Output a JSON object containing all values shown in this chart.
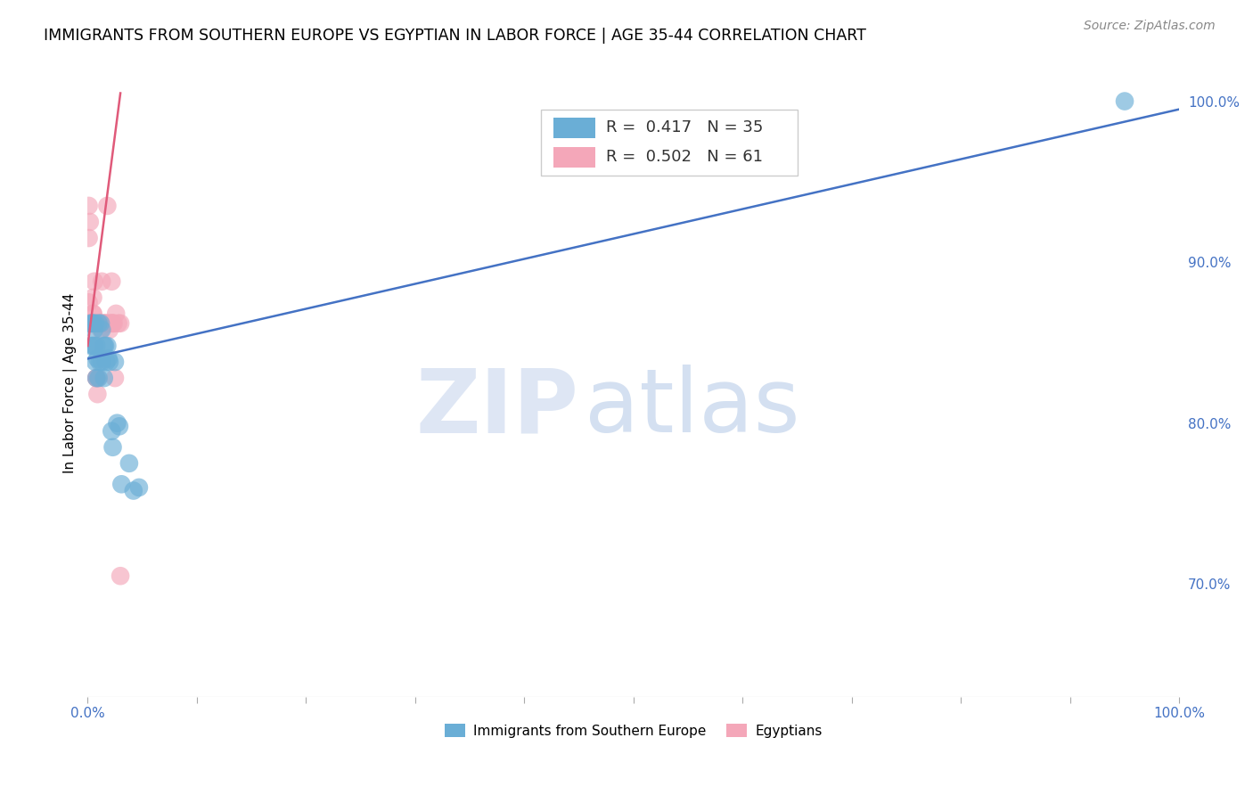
{
  "title": "IMMIGRANTS FROM SOUTHERN EUROPE VS EGYPTIAN IN LABOR FORCE | AGE 35-44 CORRELATION CHART",
  "source": "Source: ZipAtlas.com",
  "ylabel": "In Labor Force | Age 35-44",
  "xlim": [
    0.0,
    1.0
  ],
  "ylim": [
    0.63,
    1.02
  ],
  "yticks": [
    0.7,
    0.8,
    0.9,
    1.0
  ],
  "ytick_labels": [
    "70.0%",
    "80.0%",
    "90.0%",
    "100.0%"
  ],
  "legend_r_blue": "0.417",
  "legend_n_blue": "35",
  "legend_r_pink": "0.502",
  "legend_n_pink": "61",
  "blue_color": "#6aaed6",
  "pink_color": "#f4a7b9",
  "trendline_blue": "#4472c4",
  "trendline_pink": "#e05a7a",
  "watermark_zip": "ZIP",
  "watermark_atlas": "atlas",
  "blue_label": "Immigrants from Southern Europe",
  "pink_label": "Egyptians",
  "blue_scatter_x": [
    0.003,
    0.003,
    0.004,
    0.005,
    0.005,
    0.006,
    0.006,
    0.007,
    0.007,
    0.008,
    0.008,
    0.009,
    0.01,
    0.01,
    0.011,
    0.012,
    0.013,
    0.013,
    0.015,
    0.015,
    0.016,
    0.017,
    0.018,
    0.019,
    0.02,
    0.022,
    0.023,
    0.025,
    0.027,
    0.029,
    0.031,
    0.038,
    0.042,
    0.047,
    0.95
  ],
  "blue_scatter_y": [
    0.862,
    0.848,
    0.862,
    0.862,
    0.848,
    0.858,
    0.848,
    0.862,
    0.838,
    0.848,
    0.828,
    0.84,
    0.862,
    0.828,
    0.838,
    0.862,
    0.858,
    0.838,
    0.848,
    0.828,
    0.848,
    0.838,
    0.848,
    0.84,
    0.838,
    0.795,
    0.785,
    0.838,
    0.8,
    0.798,
    0.762,
    0.775,
    0.758,
    0.76,
    1.0
  ],
  "pink_scatter_x": [
    0.001,
    0.001,
    0.001,
    0.001,
    0.002,
    0.002,
    0.002,
    0.002,
    0.002,
    0.002,
    0.002,
    0.003,
    0.003,
    0.003,
    0.003,
    0.003,
    0.004,
    0.004,
    0.004,
    0.004,
    0.005,
    0.005,
    0.005,
    0.005,
    0.006,
    0.006,
    0.006,
    0.007,
    0.007,
    0.007,
    0.008,
    0.008,
    0.008,
    0.009,
    0.009,
    0.009,
    0.01,
    0.01,
    0.01,
    0.011,
    0.012,
    0.012,
    0.013,
    0.014,
    0.015,
    0.016,
    0.017,
    0.018,
    0.019,
    0.02,
    0.021,
    0.022,
    0.022,
    0.023,
    0.023,
    0.024,
    0.025,
    0.026,
    0.028,
    0.03,
    0.03
  ],
  "pink_scatter_y": [
    0.862,
    0.935,
    0.915,
    0.875,
    0.862,
    0.862,
    0.862,
    0.862,
    0.862,
    0.862,
    0.925,
    0.862,
    0.862,
    0.862,
    0.862,
    0.862,
    0.862,
    0.862,
    0.862,
    0.862,
    0.878,
    0.868,
    0.862,
    0.868,
    0.888,
    0.862,
    0.862,
    0.862,
    0.862,
    0.862,
    0.828,
    0.828,
    0.862,
    0.828,
    0.818,
    0.862,
    0.862,
    0.862,
    0.862,
    0.862,
    0.858,
    0.862,
    0.888,
    0.862,
    0.862,
    0.862,
    0.862,
    0.935,
    0.862,
    0.858,
    0.862,
    0.888,
    0.862,
    0.862,
    0.862,
    0.862,
    0.828,
    0.868,
    0.862,
    0.862,
    0.705
  ],
  "blue_trend_x0": 0.0,
  "blue_trend_x1": 1.0,
  "blue_trend_y0": 0.84,
  "blue_trend_y1": 0.995,
  "pink_trend_x0": 0.0,
  "pink_trend_x1": 0.03,
  "pink_trend_y0": 0.848,
  "pink_trend_y1": 1.005
}
